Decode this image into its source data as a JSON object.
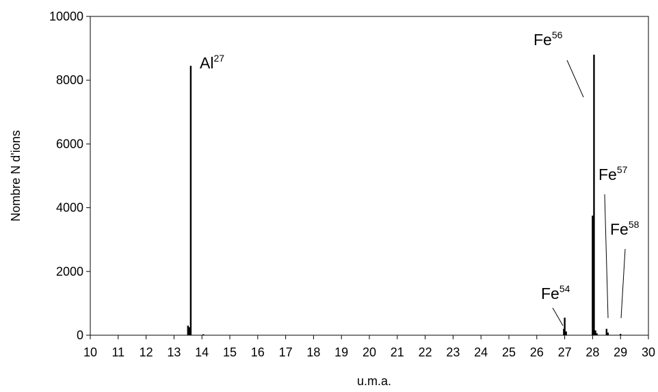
{
  "chart_data": {
    "type": "bar",
    "title": "",
    "xlabel": "u.m.a.",
    "ylabel": "Nombre N d'ions",
    "xlim": [
      10,
      30
    ],
    "ylim": [
      0,
      10000
    ],
    "x_ticks": [
      "10",
      "11",
      "12",
      "13",
      "14",
      "15",
      "16",
      "17",
      "18",
      "19",
      "20",
      "21",
      "22",
      "23",
      "24",
      "25",
      "26",
      "27",
      "28",
      "29",
      "30"
    ],
    "y_ticks": [
      "0",
      "2000",
      "4000",
      "6000",
      "8000",
      "10000"
    ],
    "grid": false,
    "legend": "none",
    "series": [
      {
        "x": [
          13.5,
          13.55,
          13.6,
          14.05,
          26.97,
          27.0,
          27.05,
          28.0,
          28.05,
          28.1,
          28.15,
          28.5,
          28.55,
          29.0
        ],
        "values": [
          300,
          250,
          8450,
          30,
          200,
          550,
          120,
          3750,
          8800,
          150,
          60,
          200,
          80,
          40
        ]
      }
    ],
    "annotations": [
      {
        "base": "Al",
        "sup": "27",
        "x": 13.6,
        "y": 8450
      },
      {
        "base": "Fe",
        "sup": "56",
        "x": 28.05,
        "y": 8800
      },
      {
        "base": "Fe",
        "sup": "57",
        "x": 28.5,
        "y": 200
      },
      {
        "base": "Fe",
        "sup": "58",
        "x": 29.0,
        "y": 40
      },
      {
        "base": "Fe",
        "sup": "54",
        "x": 27.0,
        "y": 550
      }
    ]
  }
}
